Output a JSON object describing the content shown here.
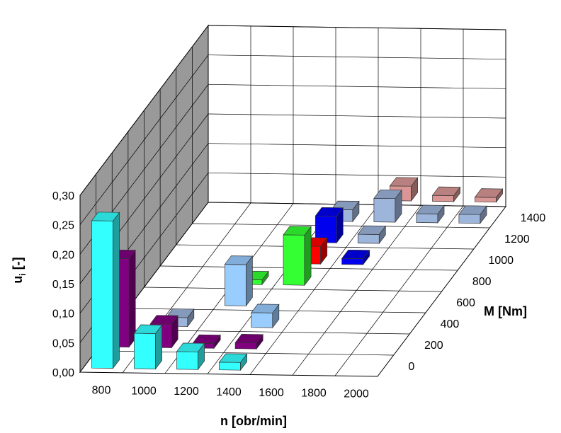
{
  "chart_data": {
    "type": "bar",
    "subtype": "3d-column",
    "title": "",
    "xlabel": "n [obr/min]",
    "zlabel": "M [Nm]",
    "ylabel_main": "u",
    "ylabel_sub": "i",
    "ylabel_unit": " [-]",
    "ylim": [
      0,
      0.3
    ],
    "y_ticks": [
      "0,00",
      "0,05",
      "0,10",
      "0,15",
      "0,20",
      "0,25",
      "0,30"
    ],
    "x_categories": [
      "800",
      "1000",
      "1200",
      "1400",
      "1600",
      "1800",
      "2000"
    ],
    "z_ticks": [
      "0",
      "200",
      "400",
      "600",
      "800",
      "1000",
      "1200",
      "1400"
    ],
    "grid": true,
    "bars": [
      {
        "n": "800",
        "M": "0",
        "value": 0.25,
        "color": "#33ffff"
      },
      {
        "n": "800",
        "M": "200",
        "value": 0.15,
        "color": "#800080"
      },
      {
        "n": "1000",
        "M": "0",
        "value": 0.06,
        "color": "#33ffff"
      },
      {
        "n": "1000",
        "M": "200",
        "value": 0.04,
        "color": "#800080"
      },
      {
        "n": "1000",
        "M": "400",
        "value": 0.015,
        "color": "#9db5db"
      },
      {
        "n": "1200",
        "M": "0",
        "value": 0.03,
        "color": "#33ffff"
      },
      {
        "n": "1200",
        "M": "200",
        "value": 0.008,
        "color": "#800080"
      },
      {
        "n": "1200",
        "M": "600",
        "value": 0.07,
        "color": "#99ccff"
      },
      {
        "n": "1200",
        "M": "800",
        "value": 0.008,
        "color": "#33ff33"
      },
      {
        "n": "1400",
        "M": "0",
        "value": 0.013,
        "color": "#33ffff"
      },
      {
        "n": "1400",
        "M": "200",
        "value": 0.01,
        "color": "#800080"
      },
      {
        "n": "1400",
        "M": "400",
        "value": 0.025,
        "color": "#99ccff"
      },
      {
        "n": "1400",
        "M": "800",
        "value": 0.085,
        "color": "#33ff33"
      },
      {
        "n": "1400",
        "M": "1000",
        "value": 0.03,
        "color": "#ff0000"
      },
      {
        "n": "1400",
        "M": "1200",
        "value": 0.045,
        "color": "#0000ee"
      },
      {
        "n": "1400",
        "M": "1400",
        "value": 0.02,
        "color": "#9db5db"
      },
      {
        "n": "1600",
        "M": "1000",
        "value": 0.01,
        "color": "#0000ee"
      },
      {
        "n": "1600",
        "M": "1200",
        "value": 0.015,
        "color": "#9db5db"
      },
      {
        "n": "1600",
        "M": "1400",
        "value": 0.04,
        "color": "#9db5db"
      },
      {
        "n": "1600",
        "M": "1600",
        "value": 0.025,
        "color": "#d99694"
      },
      {
        "n": "1800",
        "M": "1400",
        "value": 0.015,
        "color": "#9db5db"
      },
      {
        "n": "1800",
        "M": "1600",
        "value": 0.01,
        "color": "#d99694"
      },
      {
        "n": "2000",
        "M": "1400",
        "value": 0.015,
        "color": "#9db5db"
      },
      {
        "n": "2000",
        "M": "1600",
        "value": 0.008,
        "color": "#d99694"
      }
    ]
  }
}
